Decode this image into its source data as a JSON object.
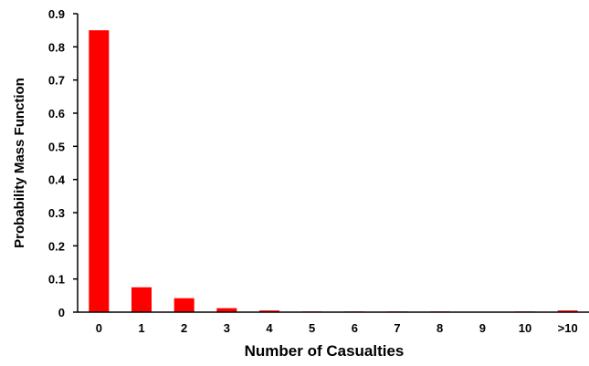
{
  "chart_data": {
    "type": "bar",
    "title": "",
    "xlabel": "Number of Casualties",
    "ylabel": "Probability Mass Function",
    "categories": [
      "0",
      "1",
      "2",
      "3",
      "4",
      "5",
      "6",
      "7",
      "8",
      "9",
      "10",
      ">10"
    ],
    "values": [
      0.85,
      0.075,
      0.042,
      0.012,
      0.005,
      0.002,
      0.002,
      0.002,
      0.002,
      0.0,
      0.002,
      0.005
    ],
    "ylim": [
      0,
      0.9
    ],
    "yticks": [
      "0",
      "0.1",
      "0.2",
      "0.3",
      "0.4",
      "0.5",
      "0.6",
      "0.7",
      "0.8",
      "0.9"
    ],
    "grid": false,
    "legend": "none",
    "bar_color": "#ff0000",
    "axis_color": "#000000"
  }
}
